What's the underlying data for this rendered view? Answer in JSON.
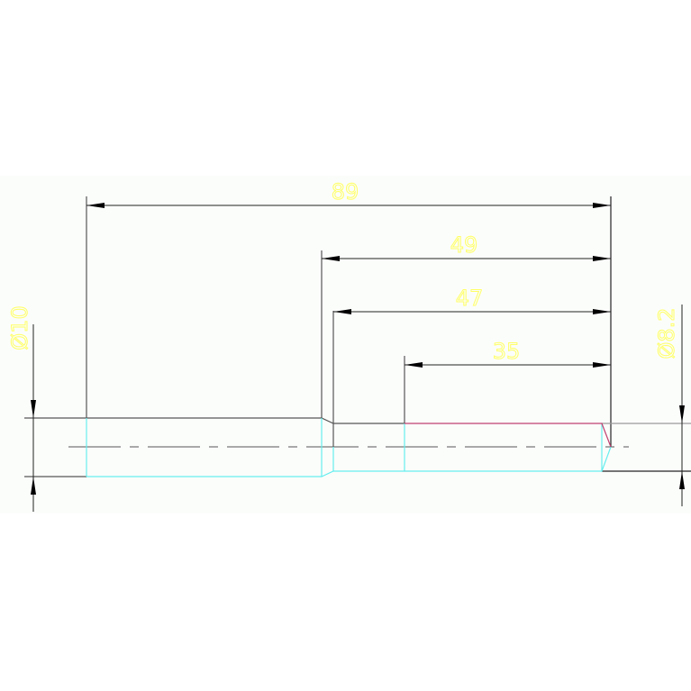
{
  "drawing": {
    "dimensions": [
      {
        "id": "len-89",
        "label": "89"
      },
      {
        "id": "len-49",
        "label": "49"
      },
      {
        "id": "len-47",
        "label": "47"
      },
      {
        "id": "len-35",
        "label": "35"
      },
      {
        "id": "dia-10",
        "label": "Ø10"
      },
      {
        "id": "dia-8-2",
        "label": "Ø8.2"
      }
    ],
    "colors": {
      "outline": "#555555",
      "hidden": "#66eeee",
      "highlight": "#c04070",
      "dimension_text": "#ffff66",
      "background_band": "#fbfdfb"
    }
  }
}
